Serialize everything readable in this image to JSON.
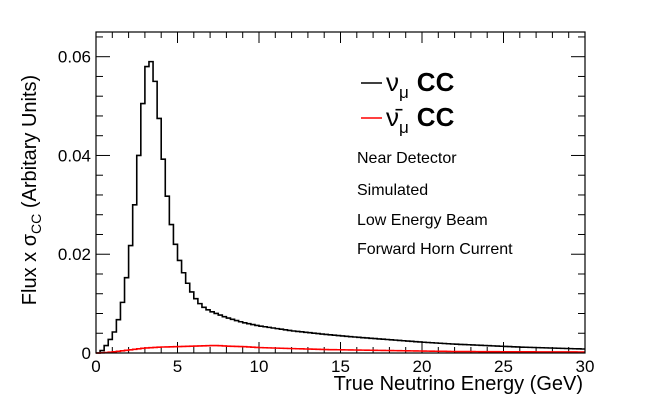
{
  "chart_data": {
    "type": "line",
    "style": "histogram-step",
    "xlabel": "True Neutrino Energy (GeV)",
    "ylabel": {
      "prefix": "Flux x ",
      "symbol": "σ",
      "subscript": "CC",
      "suffix": " (Arbitary Units)"
    },
    "xlim": [
      0,
      30
    ],
    "ylim": [
      0,
      0.065
    ],
    "xticks": [
      0,
      5,
      10,
      15,
      20,
      25,
      30
    ],
    "yticks": [
      0,
      0.02,
      0.04,
      0.06
    ],
    "ytick_labels": [
      "0",
      "0.02",
      "0.04",
      "0.06"
    ],
    "bin_width": 0.25,
    "series": [
      {
        "name": "νμ CC",
        "legend_symbol": "ν",
        "legend_subscript": "μ",
        "legend_label": "CC",
        "color": "#000000",
        "points": [
          [
            0.25,
            0.0
          ],
          [
            0.75,
            0.002
          ],
          [
            1.25,
            0.005
          ],
          [
            1.75,
            0.012
          ],
          [
            2.25,
            0.025
          ],
          [
            2.75,
            0.045
          ],
          [
            3.0,
            0.056
          ],
          [
            3.25,
            0.06
          ],
          [
            3.5,
            0.058
          ],
          [
            3.75,
            0.052
          ],
          [
            4.0,
            0.043
          ],
          [
            4.5,
            0.028
          ],
          [
            5.0,
            0.02
          ],
          [
            5.5,
            0.015
          ],
          [
            6.0,
            0.0115
          ],
          [
            6.5,
            0.0095
          ],
          [
            7.0,
            0.0085
          ],
          [
            8.0,
            0.0072
          ],
          [
            9.0,
            0.0062
          ],
          [
            10.0,
            0.0055
          ],
          [
            12.0,
            0.0045
          ],
          [
            14.0,
            0.0038
          ],
          [
            16.0,
            0.0032
          ],
          [
            18.0,
            0.0027
          ],
          [
            20.0,
            0.0022
          ],
          [
            22.0,
            0.0018
          ],
          [
            24.0,
            0.0015
          ],
          [
            26.0,
            0.0012
          ],
          [
            28.0,
            0.001
          ],
          [
            30.0,
            0.0008
          ]
        ]
      },
      {
        "name": "ν̄μ CC",
        "legend_symbol": "ν̄",
        "legend_subscript": "μ",
        "legend_label": "CC",
        "color": "#ff0000",
        "points": [
          [
            0.25,
            0.0
          ],
          [
            1.0,
            0.0002
          ],
          [
            2.0,
            0.0006
          ],
          [
            3.0,
            0.001
          ],
          [
            4.0,
            0.0012
          ],
          [
            5.0,
            0.0013
          ],
          [
            6.0,
            0.0014
          ],
          [
            7.0,
            0.0015
          ],
          [
            7.5,
            0.0015
          ],
          [
            8.0,
            0.0014
          ],
          [
            9.0,
            0.0013
          ],
          [
            10.0,
            0.0011
          ],
          [
            12.0,
            0.0009
          ],
          [
            14.0,
            0.0007
          ],
          [
            16.0,
            0.0006
          ],
          [
            18.0,
            0.0005
          ],
          [
            20.0,
            0.0004
          ],
          [
            22.0,
            0.0003
          ],
          [
            25.0,
            0.00025
          ],
          [
            30.0,
            0.0002
          ]
        ]
      }
    ],
    "annotations": [
      "Near Detector",
      "Simulated",
      "Low Energy Beam",
      "Forward Horn Current"
    ],
    "legend_position": "top-right",
    "grid": false
  }
}
